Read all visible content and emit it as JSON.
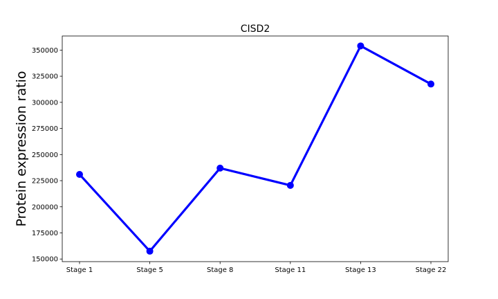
{
  "chart_data": {
    "type": "line",
    "title": "CISD2",
    "xlabel": "",
    "ylabel": "Protein expression ratio",
    "categories": [
      "Stage 1",
      "Stage 5",
      "Stage 8",
      "Stage 11",
      "Stage 13",
      "Stage 22"
    ],
    "series": [
      {
        "values": [
          231000,
          157500,
          237000,
          220500,
          354000,
          317500
        ]
      }
    ],
    "ylim": [
      147500,
      363500
    ],
    "yticks": [
      150000,
      175000,
      200000,
      225000,
      250000,
      275000,
      300000,
      325000,
      350000
    ],
    "ytick_labels": [
      "150000",
      "175000",
      "200000",
      "225000",
      "250000",
      "275000",
      "300000",
      "325000",
      "350000"
    ],
    "grid": false,
    "color": "#0000ff"
  }
}
